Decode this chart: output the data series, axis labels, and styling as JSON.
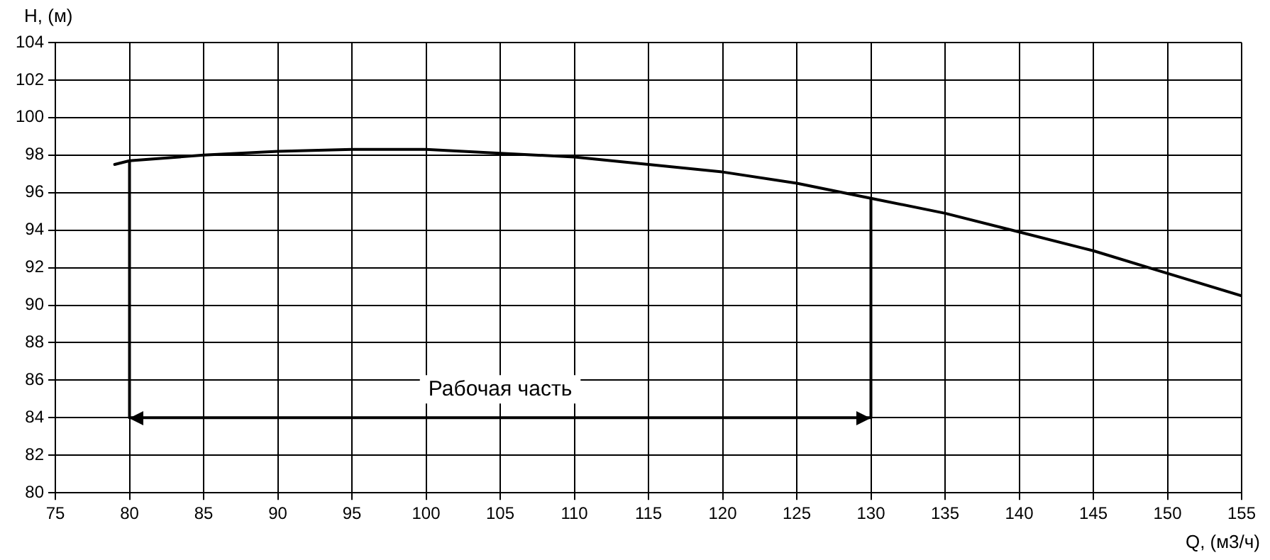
{
  "chart_data": {
    "type": "line",
    "xlabel": "Q, (м3/ч)",
    "ylabel": "H, (м)",
    "xlim": [
      75,
      155
    ],
    "xticks": [
      75,
      80,
      85,
      90,
      95,
      100,
      105,
      110,
      115,
      120,
      125,
      130,
      135,
      140,
      145,
      150,
      155
    ],
    "ylim": [
      80,
      104
    ],
    "yticks": [
      80,
      82,
      84,
      86,
      88,
      90,
      92,
      94,
      96,
      98,
      100,
      102,
      104
    ],
    "grid": true,
    "legend": false,
    "marker": "none",
    "line_style": "solid",
    "series": [
      {
        "color": "#000000",
        "x": [
          79,
          80,
          85,
          90,
          95,
          100,
          105,
          110,
          115,
          120,
          125,
          130,
          135,
          140,
          145,
          150,
          155
        ],
        "values": [
          97.5,
          97.7,
          98.0,
          98.2,
          98.3,
          98.3,
          98.1,
          97.9,
          97.5,
          97.1,
          96.5,
          95.7,
          94.9,
          93.9,
          92.9,
          91.7,
          90.5
        ]
      },
      {
        "color": "#000000",
        "x": [
          80,
          80
        ],
        "values": [
          97.7,
          84
        ]
      },
      {
        "color": "#000000",
        "x": [
          130,
          130
        ],
        "values": [
          95.7,
          84
        ]
      },
      {
        "color": "#000000",
        "x": [
          80,
          130
        ],
        "values": [
          84,
          84
        ]
      }
    ],
    "annotations": [
      {
        "text": "Рабочая часть",
        "x": 105,
        "y": 84
      }
    ]
  }
}
